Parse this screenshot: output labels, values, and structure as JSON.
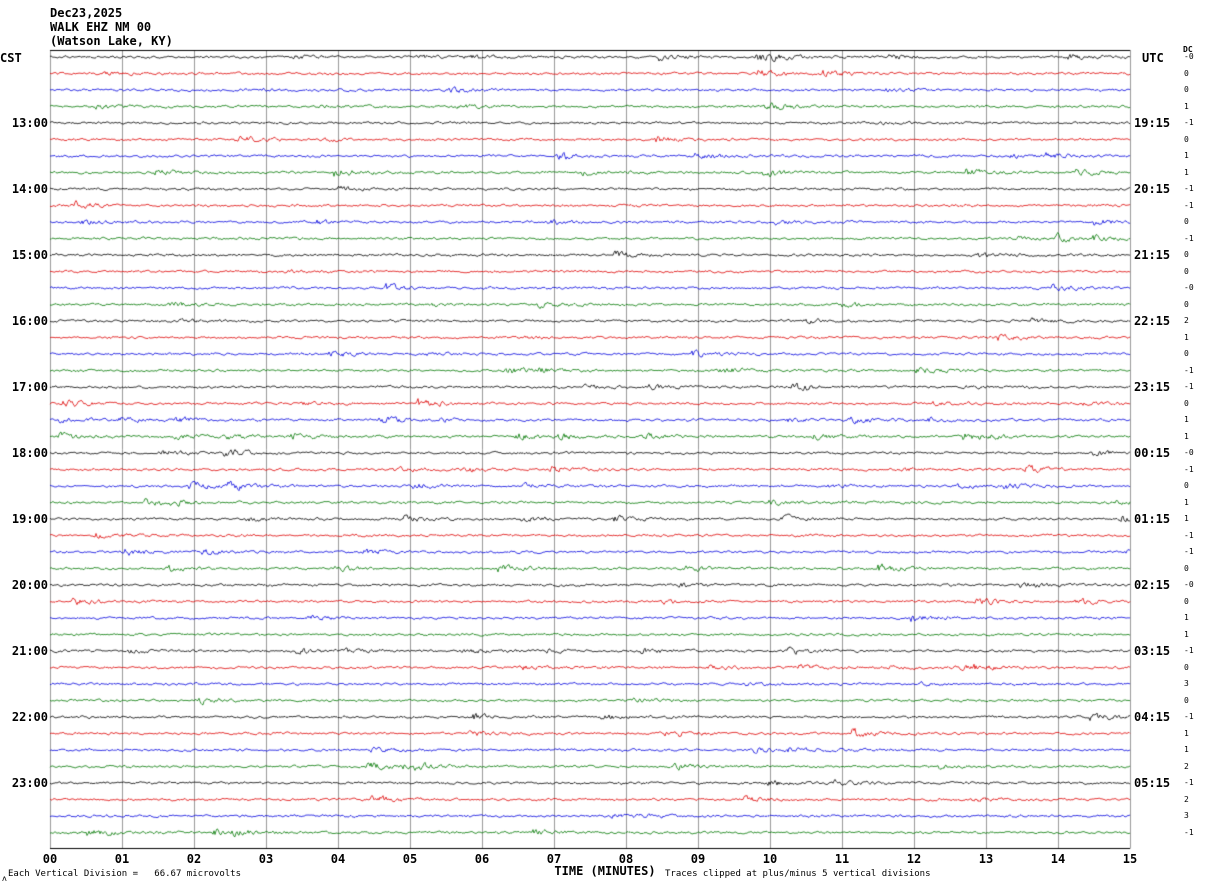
{
  "header": {
    "date": "Dec23,2025",
    "station": "WALK EHZ NM 00",
    "location": "(Watson Lake, KY)"
  },
  "axes": {
    "left_header": "CST",
    "right_header": "UTC",
    "dc_header": "DC",
    "xlabel": "TIME (MINUTES)",
    "x_ticks": [
      "00",
      "01",
      "02",
      "03",
      "04",
      "05",
      "06",
      "07",
      "08",
      "09",
      "10",
      "11",
      "12",
      "13",
      "14",
      "15"
    ]
  },
  "footer": {
    "left": "Each Vertical Division =   66.67 microvolts",
    "right": "Traces clipped at plus/minus 5 vertical divisions",
    "corner_mark": "ʌ"
  },
  "chart_data": {
    "type": "line",
    "title": "WALK EHZ NM 00 (Watson Lake, KY) helicorder, Dec23,2025",
    "description": "Seismogram helicorder strip chart; 48 rows of 15 minutes each showing background seismic noise, clipped at plus/minus 5 vertical divisions",
    "rows": 48,
    "row_minutes": 15,
    "start_time_cst": "12:00",
    "end_time_cst": "24:00",
    "x_range_minutes": [
      0,
      15
    ],
    "grid": "vertical lines every 1 minute",
    "volts_per_division": "66.67 microvolts",
    "clip_divisions": 5,
    "trace_colors": [
      "#000000",
      "#dd0000",
      "#0000dd",
      "#007700"
    ],
    "left_labels": [
      {
        "row": 4,
        "text": "13:00"
      },
      {
        "row": 8,
        "text": "14:00"
      },
      {
        "row": 12,
        "text": "15:00"
      },
      {
        "row": 16,
        "text": "16:00"
      },
      {
        "row": 20,
        "text": "17:00"
      },
      {
        "row": 24,
        "text": "18:00"
      },
      {
        "row": 28,
        "text": "19:00"
      },
      {
        "row": 32,
        "text": "20:00"
      },
      {
        "row": 36,
        "text": "21:00"
      },
      {
        "row": 40,
        "text": "22:00"
      },
      {
        "row": 44,
        "text": "23:00"
      }
    ],
    "right_labels": [
      {
        "row": 4,
        "text": "19:15"
      },
      {
        "row": 8,
        "text": "20:15"
      },
      {
        "row": 12,
        "text": "21:15"
      },
      {
        "row": 16,
        "text": "22:15"
      },
      {
        "row": 20,
        "text": "23:15"
      },
      {
        "row": 24,
        "text": "00:15"
      },
      {
        "row": 28,
        "text": "01:15"
      },
      {
        "row": 32,
        "text": "02:15"
      },
      {
        "row": 36,
        "text": "03:15"
      },
      {
        "row": 40,
        "text": "04:15"
      },
      {
        "row": 44,
        "text": "05:15"
      }
    ],
    "dc_values": [
      "-0",
      "0",
      "0",
      "1",
      "-1",
      "0",
      "1",
      "1",
      "-1",
      "-1",
      "0",
      "-1",
      "0",
      "0",
      "-0",
      "0",
      "2",
      "1",
      "0",
      "-1",
      "-1",
      "0",
      "1",
      "1",
      "-0",
      "-1",
      "0",
      "1",
      "1",
      "-1",
      "-1",
      "0",
      "-0",
      "0",
      "1",
      "1",
      "-1",
      "0",
      "3",
      "0",
      "-1",
      "1",
      "1",
      "2",
      "-1",
      "2",
      "3",
      "-1"
    ]
  }
}
